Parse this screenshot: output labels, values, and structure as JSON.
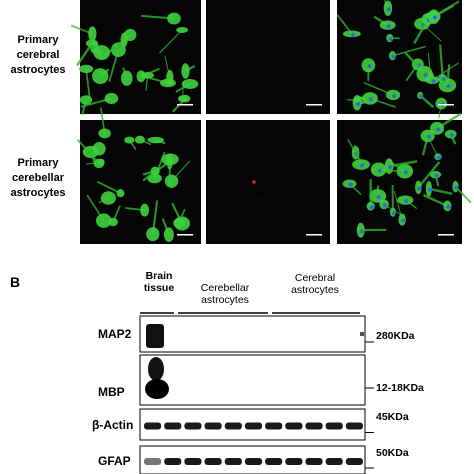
{
  "panel_a": {
    "row_labels": [
      "Primary cerebral astrocytes",
      "Primary cerebellar astrocytes"
    ]
  },
  "panel_b": {
    "label": "B",
    "lane_headers": [
      "Brain tissue",
      "Cerebellar astrocytes",
      "Cerebral astrocytes"
    ],
    "blots": [
      {
        "protein": "MAP2",
        "size": "280KDa"
      },
      {
        "protein": "MBP",
        "size": "12-18KDa"
      },
      {
        "protein": "β-Actin",
        "size": "45KDa"
      },
      {
        "protein": "GFAP",
        "size": "50KDa"
      }
    ]
  }
}
